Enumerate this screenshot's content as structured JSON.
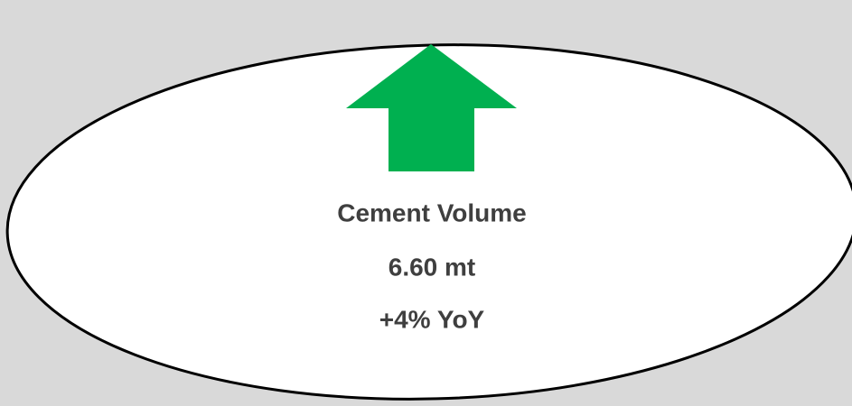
{
  "card": {
    "label": "Cement Volume",
    "value": "6.60 mt",
    "change": "+4% YoY"
  }
}
